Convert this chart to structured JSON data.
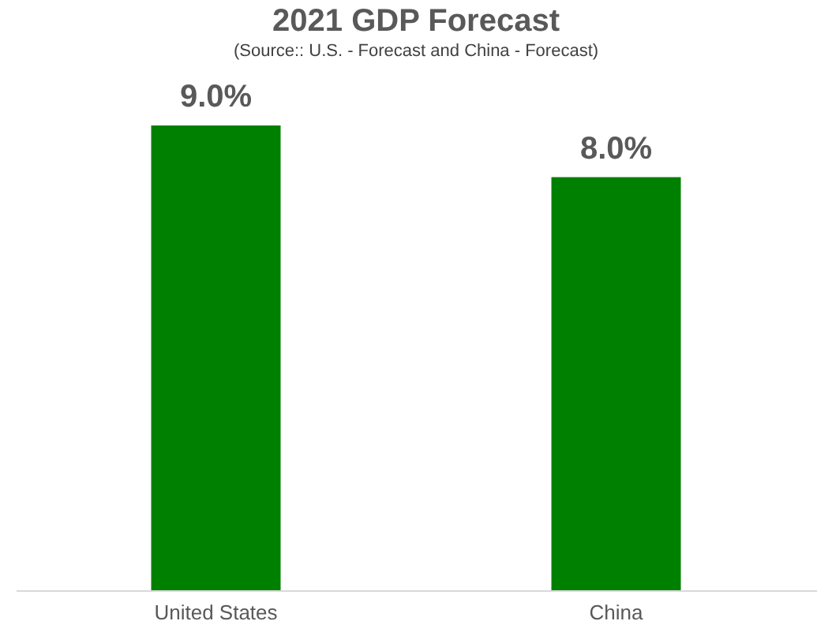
{
  "chart_data": {
    "type": "bar",
    "title": "2021 GDP Forecast",
    "subtitle": "(Source:: U.S. - Forecast and China - Forecast)",
    "categories": [
      "United States",
      "China"
    ],
    "values": [
      9.0,
      8.0
    ],
    "color": "#008000",
    "value_labels": [
      "9.0%",
      "8.0%"
    ]
  }
}
